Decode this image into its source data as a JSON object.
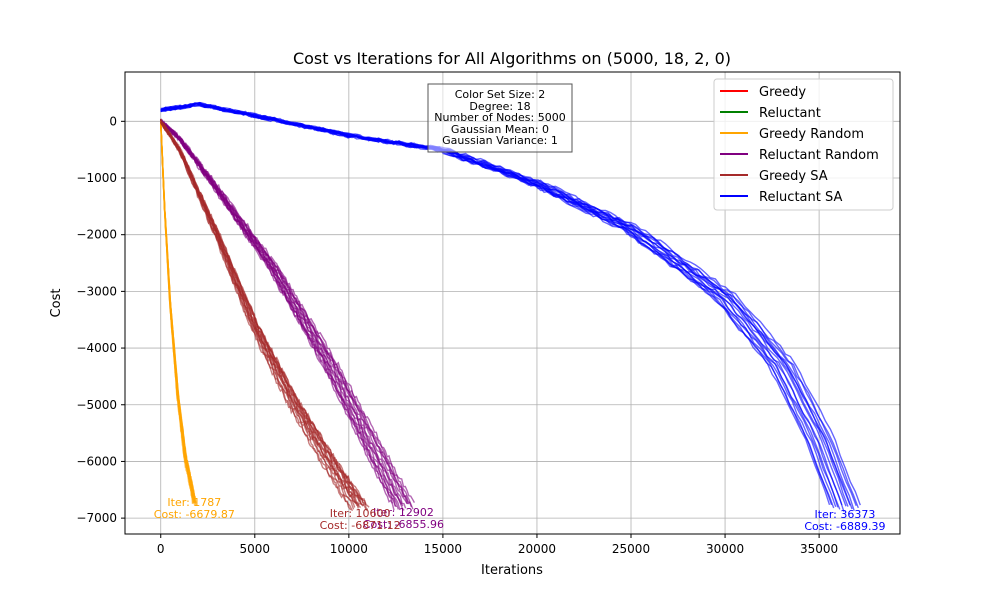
{
  "chart_data": {
    "type": "line",
    "title": "Cost vs Iterations for All Algorithms on (5000, 18, 2, 0)",
    "xlabel": "Iterations",
    "ylabel": "Cost",
    "xlim": [
      -1900,
      39300
    ],
    "ylim": [
      -7280,
      870
    ],
    "xticks": [
      0,
      5000,
      10000,
      15000,
      20000,
      25000,
      30000,
      35000
    ],
    "yticks": [
      0,
      -1000,
      -2000,
      -3000,
      -4000,
      -5000,
      -6000,
      -7000
    ],
    "grid": true,
    "legend_position": "top-right",
    "info_box": {
      "lines": [
        "Color Set Size: 2",
        "Degree: 18",
        "Number of Nodes: 5000",
        "Gaussian Mean: 0",
        "Gaussian Variance: 1"
      ]
    },
    "series": [
      {
        "name": "Greedy",
        "color": "#ff0000",
        "points": []
      },
      {
        "name": "Reluctant",
        "color": "#008000",
        "points": []
      },
      {
        "name": "Greedy Random",
        "color": "#ffa500",
        "points": [
          [
            0,
            0
          ],
          [
            200,
            -1500
          ],
          [
            500,
            -3200
          ],
          [
            900,
            -4800
          ],
          [
            1300,
            -5900
          ],
          [
            1787,
            -6680
          ]
        ],
        "end_label": {
          "line1": "Iter: 1787",
          "line2": "Cost: -6679.87",
          "x": 1787,
          "y": -6679.87
        }
      },
      {
        "name": "Reluctant Random",
        "color": "#800080",
        "points": [
          [
            0,
            0
          ],
          [
            1000,
            -300
          ],
          [
            3000,
            -1200
          ],
          [
            6000,
            -2600
          ],
          [
            9000,
            -4300
          ],
          [
            11500,
            -5900
          ],
          [
            12902,
            -6800
          ]
        ],
        "end_label": {
          "line1": "Iter: 12902",
          "line2": "Cost: -6855.96",
          "x": 12902,
          "y": -6855.96
        }
      },
      {
        "name": "Greedy SA",
        "color": "#a52a2a",
        "points": [
          [
            0,
            0
          ],
          [
            1000,
            -500
          ],
          [
            3000,
            -2000
          ],
          [
            5000,
            -3600
          ],
          [
            7000,
            -4900
          ],
          [
            9000,
            -6000
          ],
          [
            10600,
            -6800
          ]
        ],
        "end_label": {
          "line1": "Iter: 10600",
          "line2": "Cost: -6871.12",
          "x": 10600,
          "y": -6871.12
        }
      },
      {
        "name": "Reluctant SA",
        "color": "#0000ff",
        "points": [
          [
            0,
            200
          ],
          [
            2000,
            300
          ],
          [
            5000,
            100
          ],
          [
            10000,
            -250
          ],
          [
            15000,
            -500
          ],
          [
            20000,
            -1100
          ],
          [
            25000,
            -1900
          ],
          [
            30000,
            -3100
          ],
          [
            33000,
            -4300
          ],
          [
            35000,
            -5600
          ],
          [
            36373,
            -6800
          ]
        ],
        "end_label": {
          "line1": "Iter: 36373",
          "line2": "Cost: -6889.39",
          "x": 36373,
          "y": -6889.39
        }
      }
    ]
  }
}
